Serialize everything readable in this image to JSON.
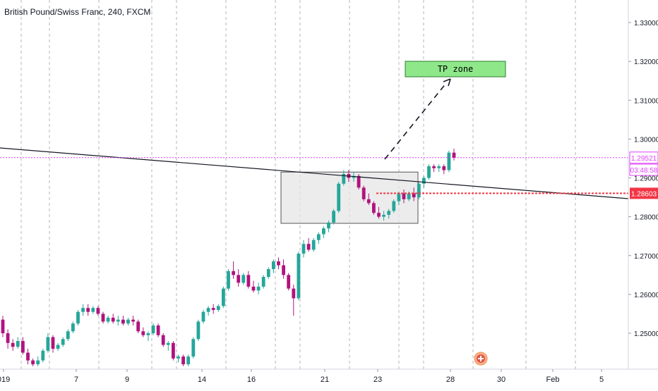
{
  "header": {
    "title": "British Pound/Swiss Franc, 240, FXCM"
  },
  "colors": {
    "up": "#26a69a",
    "down": "#b0137e",
    "grid": "#b2b5be",
    "price_line": "#e040fb",
    "support_line": "#f23645",
    "trendline": "#131722",
    "tp_fill": "#8ee88a",
    "zone_fill": "#e6e6e6"
  },
  "annotations": {
    "tp_zone_label": "TP zone",
    "current_price_label": "1.29521",
    "countdown_label": "03:48:58",
    "support_label": "1.28603"
  },
  "chart_data": {
    "type": "candlestick",
    "symbol": "GBPCHF",
    "interval": "240",
    "y_axis": {
      "ticks": [
        "1.33000",
        "1.32000",
        "1.31000",
        "1.30000",
        "1.29000",
        "1.28000",
        "1.27000",
        "1.26000",
        "1.25000"
      ],
      "range": [
        1.2417,
        1.3378
      ]
    },
    "x_axis": {
      "ticks": [
        "019",
        "7",
        "9",
        "14",
        "16",
        "21",
        "23",
        "28",
        "30",
        "Feb",
        "5"
      ]
    },
    "current_price": 1.29521,
    "support_level": 1.28603,
    "tp_zone": {
      "low": 1.3157,
      "high": 1.3205
    },
    "consolidation_box": {
      "low": 1.2783,
      "high": 1.2915
    },
    "candles": [
      [
        1.2535,
        1.2545,
        1.249,
        1.25
      ],
      [
        1.25,
        1.251,
        1.246,
        1.2475
      ],
      [
        1.2475,
        1.2485,
        1.2455,
        1.2465
      ],
      [
        1.2465,
        1.249,
        1.246,
        1.248
      ],
      [
        1.248,
        1.249,
        1.2445,
        1.245
      ],
      [
        1.245,
        1.246,
        1.242,
        1.243
      ],
      [
        1.243,
        1.2435,
        1.2415,
        1.242
      ],
      [
        1.242,
        1.244,
        1.2415,
        1.243
      ],
      [
        1.243,
        1.246,
        1.2425,
        1.2455
      ],
      [
        1.2455,
        1.25,
        1.245,
        1.249
      ],
      [
        1.249,
        1.2495,
        1.245,
        1.246
      ],
      [
        1.246,
        1.2475,
        1.2455,
        1.247
      ],
      [
        1.247,
        1.249,
        1.2465,
        1.2485
      ],
      [
        1.2485,
        1.251,
        1.248,
        1.2505
      ],
      [
        1.2505,
        1.253,
        1.25,
        1.2525
      ],
      [
        1.2525,
        1.256,
        1.252,
        1.2555
      ],
      [
        1.2555,
        1.2575,
        1.2545,
        1.2565
      ],
      [
        1.2565,
        1.2575,
        1.2545,
        1.2555
      ],
      [
        1.2555,
        1.257,
        1.255,
        1.2565
      ],
      [
        1.2565,
        1.257,
        1.2545,
        1.255
      ],
      [
        1.255,
        1.2555,
        1.2525,
        1.253
      ],
      [
        1.253,
        1.2545,
        1.2525,
        1.254
      ],
      [
        1.254,
        1.255,
        1.2525,
        1.253
      ],
      [
        1.253,
        1.2545,
        1.252,
        1.2535
      ],
      [
        1.2535,
        1.2545,
        1.252,
        1.2525
      ],
      [
        1.2525,
        1.254,
        1.252,
        1.2535
      ],
      [
        1.2535,
        1.2545,
        1.252,
        1.253
      ],
      [
        1.253,
        1.2535,
        1.25,
        1.2505
      ],
      [
        1.2505,
        1.2515,
        1.249,
        1.2495
      ],
      [
        1.2495,
        1.2505,
        1.248,
        1.25
      ],
      [
        1.25,
        1.2525,
        1.2495,
        1.252
      ],
      [
        1.252,
        1.2525,
        1.249,
        1.2495
      ],
      [
        1.2495,
        1.25,
        1.2465,
        1.247
      ],
      [
        1.247,
        1.248,
        1.2455,
        1.2475
      ],
      [
        1.2475,
        1.248,
        1.243,
        1.2435
      ],
      [
        1.2435,
        1.2445,
        1.2425,
        1.244
      ],
      [
        1.244,
        1.2445,
        1.2415,
        1.242
      ],
      [
        1.242,
        1.2445,
        1.2415,
        1.244
      ],
      [
        1.244,
        1.249,
        1.2435,
        1.2485
      ],
      [
        1.2485,
        1.2535,
        1.248,
        1.253
      ],
      [
        1.253,
        1.256,
        1.2525,
        1.2555
      ],
      [
        1.2555,
        1.257,
        1.2545,
        1.2565
      ],
      [
        1.2565,
        1.2575,
        1.255,
        1.256
      ],
      [
        1.256,
        1.2575,
        1.2555,
        1.257
      ],
      [
        1.257,
        1.262,
        1.2565,
        1.2615
      ],
      [
        1.2615,
        1.2665,
        1.261,
        1.266
      ],
      [
        1.266,
        1.2685,
        1.264,
        1.265
      ],
      [
        1.265,
        1.2665,
        1.262,
        1.263
      ],
      [
        1.263,
        1.2655,
        1.2625,
        1.265
      ],
      [
        1.265,
        1.266,
        1.2615,
        1.262
      ],
      [
        1.262,
        1.2635,
        1.2605,
        1.261
      ],
      [
        1.261,
        1.263,
        1.26,
        1.262
      ],
      [
        1.262,
        1.265,
        1.2615,
        1.2645
      ],
      [
        1.2645,
        1.267,
        1.264,
        1.2665
      ],
      [
        1.2665,
        1.269,
        1.2655,
        1.2685
      ],
      [
        1.2685,
        1.2695,
        1.2665,
        1.2675
      ],
      [
        1.2675,
        1.269,
        1.264,
        1.265
      ],
      [
        1.265,
        1.2655,
        1.261,
        1.2615
      ],
      [
        1.2615,
        1.2625,
        1.2545,
        1.259
      ],
      [
        1.259,
        1.271,
        1.2585,
        1.2705
      ],
      [
        1.2705,
        1.274,
        1.2695,
        1.273
      ],
      [
        1.273,
        1.2745,
        1.271,
        1.2715
      ],
      [
        1.2715,
        1.2745,
        1.271,
        1.274
      ],
      [
        1.274,
        1.276,
        1.273,
        1.2755
      ],
      [
        1.2755,
        1.2775,
        1.2745,
        1.277
      ],
      [
        1.277,
        1.279,
        1.276,
        1.2785
      ],
      [
        1.2785,
        1.282,
        1.278,
        1.2815
      ],
      [
        1.2815,
        1.289,
        1.281,
        1.2885
      ],
      [
        1.2885,
        1.292,
        1.288,
        1.291
      ],
      [
        1.291,
        1.292,
        1.289,
        1.29
      ],
      [
        1.29,
        1.2915,
        1.289,
        1.2905
      ],
      [
        1.2905,
        1.291,
        1.287,
        1.2875
      ],
      [
        1.2875,
        1.288,
        1.284,
        1.2845
      ],
      [
        1.2845,
        1.286,
        1.283,
        1.2835
      ],
      [
        1.2835,
        1.284,
        1.2805,
        1.281
      ],
      [
        1.281,
        1.2825,
        1.2795,
        1.28
      ],
      [
        1.28,
        1.2815,
        1.279,
        1.2805
      ],
      [
        1.2805,
        1.282,
        1.2795,
        1.2815
      ],
      [
        1.2815,
        1.2845,
        1.281,
        1.284
      ],
      [
        1.284,
        1.2865,
        1.283,
        1.286
      ],
      [
        1.286,
        1.287,
        1.2835,
        1.2845
      ],
      [
        1.2845,
        1.2865,
        1.284,
        1.286
      ],
      [
        1.286,
        1.2875,
        1.284,
        1.285
      ],
      [
        1.285,
        1.289,
        1.2845,
        1.2885
      ],
      [
        1.2885,
        1.2905,
        1.2875,
        1.29
      ],
      [
        1.29,
        1.2935,
        1.2895,
        1.293
      ],
      [
        1.293,
        1.2935,
        1.2915,
        1.2925
      ],
      [
        1.2925,
        1.2935,
        1.2915,
        1.293
      ],
      [
        1.293,
        1.2935,
        1.291,
        1.292
      ],
      [
        1.292,
        1.297,
        1.2915,
        1.2965
      ],
      [
        1.2965,
        1.2975,
        1.2945,
        1.2952
      ]
    ]
  }
}
